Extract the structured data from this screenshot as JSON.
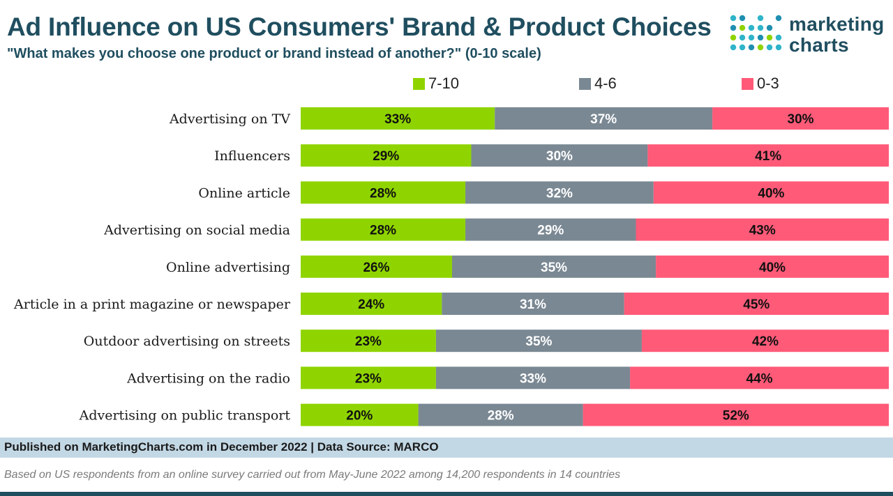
{
  "header": {
    "title": "Ad Influence on US Consumers' Brand & Product Choices",
    "subtitle": "\"What makes you choose one product or brand instead of another?\" (0-10 scale)"
  },
  "logo": {
    "line1": "marketing",
    "line2": "charts"
  },
  "colors": {
    "green": "#8fd400",
    "gray": "#7a8893",
    "pink": "#ff5a78"
  },
  "chart_data": {
    "type": "bar",
    "orientation": "horizontal",
    "stacked": true,
    "percent_stacked": true,
    "categories": [
      "Advertising on TV",
      "Influencers",
      "Online article",
      "Advertising on social media",
      "Online advertising",
      "Article in a print magazine or newspaper",
      "Outdoor advertising on streets",
      "Advertising on the radio",
      "Advertising on public transport"
    ],
    "series": [
      {
        "name": "7-10",
        "color": "#8fd400",
        "label_color": "#111111",
        "values": [
          33,
          29,
          28,
          28,
          26,
          24,
          23,
          23,
          20
        ]
      },
      {
        "name": "4-6",
        "color": "#7a8893",
        "label_color": "#ffffff",
        "values": [
          37,
          30,
          32,
          29,
          35,
          31,
          35,
          33,
          28
        ]
      },
      {
        "name": "0-3",
        "color": "#ff5a78",
        "label_color": "#111111",
        "values": [
          30,
          41,
          40,
          43,
          40,
          45,
          42,
          44,
          52
        ]
      }
    ],
    "value_suffix": "%",
    "legend_position": "top",
    "grid": false
  },
  "footer": {
    "source": "Published on MarketingCharts.com in December 2022 | Data Source: MARCO",
    "note": "Based on US respondents from an online survey carried out from May-June 2022 among 14,200 respondents in 14 countries"
  }
}
